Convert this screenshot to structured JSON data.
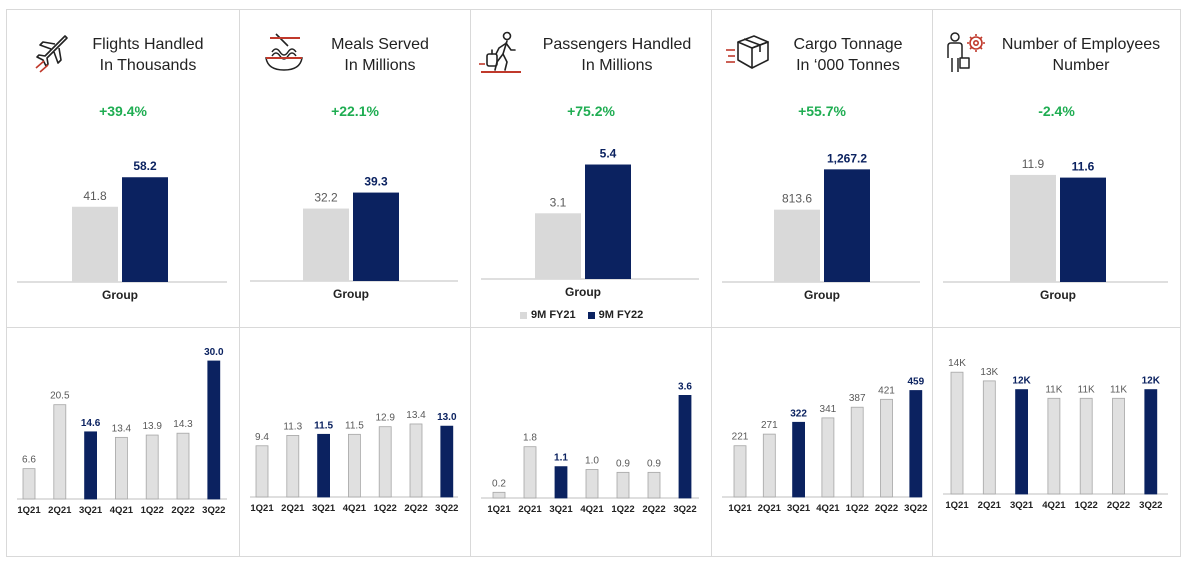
{
  "colors": {
    "fy21": "#d9d9d9",
    "fy22": "#0b2260",
    "positive": "#1fad52",
    "label": "#595959"
  },
  "legend": {
    "fy21": "9M FY21",
    "fy22": "9M FY22"
  },
  "kpis": [
    {
      "title_line1": "Flights Handled",
      "title_line2": "In Thousands",
      "icon": "airplane-icon",
      "change": "+39.4%"
    },
    {
      "title_line1": "Meals Served",
      "title_line2": "In Millions",
      "icon": "noodle-bowl-icon",
      "change": "+22.1%"
    },
    {
      "title_line1": "Passengers Handled",
      "title_line2": "In Millions",
      "icon": "traveler-luggage-icon",
      "change": "+75.2%"
    },
    {
      "title_line1": "Cargo Tonnage",
      "title_line2": "In ‘000 Tonnes",
      "icon": "cargo-box-icon",
      "change": "+55.7%"
    },
    {
      "title_line1": "Number of Employees",
      "title_line2": "Number",
      "icon": "employee-gear-icon",
      "change": "-2.4%"
    }
  ],
  "chart_data": [
    {
      "type": "bar",
      "title": "Flights Handled In Thousands",
      "categories": [
        "Group"
      ],
      "series": [
        {
          "name": "9M FY21",
          "values": [
            41.8
          ]
        },
        {
          "name": "9M FY22",
          "values": [
            58.2
          ]
        }
      ],
      "data_labels": [
        "41.8",
        "58.2"
      ]
    },
    {
      "type": "bar",
      "title": "Meals Served In Millions",
      "categories": [
        "Group"
      ],
      "series": [
        {
          "name": "9M FY21",
          "values": [
            32.2
          ]
        },
        {
          "name": "9M FY22",
          "values": [
            39.3
          ]
        }
      ],
      "data_labels": [
        "32.2",
        "39.3"
      ]
    },
    {
      "type": "bar",
      "title": "Passengers Handled In Millions",
      "categories": [
        "Group"
      ],
      "series": [
        {
          "name": "9M FY21",
          "values": [
            3.1
          ]
        },
        {
          "name": "9M FY22",
          "values": [
            5.4
          ]
        }
      ],
      "data_labels": [
        "3.1",
        "5.4"
      ]
    },
    {
      "type": "bar",
      "title": "Cargo Tonnage In ‘000 Tonnes",
      "categories": [
        "Group"
      ],
      "series": [
        {
          "name": "9M FY21",
          "values": [
            813.6
          ]
        },
        {
          "name": "9M FY22",
          "values": [
            1267.2
          ]
        }
      ],
      "data_labels": [
        "813.6",
        "1,267.2"
      ]
    },
    {
      "type": "bar",
      "title": "Number of Employees Number",
      "categories": [
        "Group"
      ],
      "series": [
        {
          "name": "9M FY21",
          "values": [
            11.9
          ]
        },
        {
          "name": "9M FY22",
          "values": [
            11.6
          ]
        }
      ],
      "data_labels": [
        "11.9",
        "11.6"
      ]
    },
    {
      "type": "bar",
      "categories": [
        "1Q21",
        "2Q21",
        "3Q21",
        "4Q21",
        "1Q22",
        "2Q22",
        "3Q22"
      ],
      "values": [
        6.6,
        20.5,
        14.6,
        13.4,
        13.9,
        14.3,
        30.0
      ],
      "labels": [
        "6.6",
        "20.5",
        "14.6",
        "13.4",
        "13.9",
        "14.3",
        "30.0"
      ],
      "highlight": [
        2,
        6
      ]
    },
    {
      "type": "bar",
      "categories": [
        "1Q21",
        "2Q21",
        "3Q21",
        "4Q21",
        "1Q22",
        "2Q22",
        "3Q22"
      ],
      "values": [
        9.4,
        11.3,
        11.5,
        11.5,
        12.9,
        13.4,
        13.0
      ],
      "labels": [
        "9.4",
        "11.3",
        "11.5",
        "11.5",
        "12.9",
        "13.4",
        "13.0"
      ],
      "highlight": [
        2,
        6
      ]
    },
    {
      "type": "bar",
      "categories": [
        "1Q21",
        "2Q21",
        "3Q21",
        "4Q21",
        "1Q22",
        "2Q22",
        "3Q22"
      ],
      "values": [
        0.2,
        1.8,
        1.1,
        1.0,
        0.9,
        0.9,
        3.6
      ],
      "labels": [
        "0.2",
        "1.8",
        "1.1",
        "1.0",
        "0.9",
        "0.9",
        "3.6"
      ],
      "highlight": [
        2,
        6
      ]
    },
    {
      "type": "bar",
      "categories": [
        "1Q21",
        "2Q21",
        "3Q21",
        "4Q21",
        "1Q22",
        "2Q22",
        "3Q22"
      ],
      "values": [
        221,
        271,
        322,
        341,
        387,
        421,
        459
      ],
      "labels": [
        "221",
        "271",
        "322",
        "341",
        "387",
        "421",
        "459"
      ],
      "highlight": [
        2,
        6
      ]
    },
    {
      "type": "bar",
      "categories": [
        "1Q21",
        "2Q21",
        "3Q21",
        "4Q21",
        "1Q22",
        "2Q22",
        "3Q22"
      ],
      "values": [
        14,
        13,
        12,
        11,
        11,
        11,
        12
      ],
      "labels": [
        "14K",
        "13K",
        "12K",
        "11K",
        "11K",
        "11K",
        "12K"
      ],
      "highlight": [
        2,
        6
      ]
    }
  ]
}
